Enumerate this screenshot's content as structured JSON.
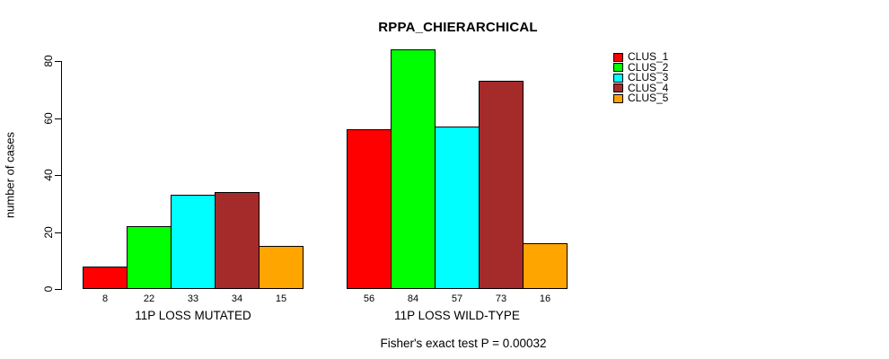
{
  "page": {
    "background": "#FFFFFF"
  },
  "chart_data": {
    "type": "bar",
    "title": "RPPA_CHIERARCHICAL",
    "xlabel": "",
    "ylabel": "number of cases",
    "ylim": [
      0,
      80
    ],
    "yticks": [
      0,
      20,
      40,
      60,
      80
    ],
    "grid": false,
    "legend_position": "right-outside",
    "categories": [
      "11P LOSS MUTATED",
      "11P LOSS WILD-TYPE"
    ],
    "series": [
      {
        "name": "CLUS_1",
        "color": "#FF0000",
        "values": [
          8,
          56
        ]
      },
      {
        "name": "CLUS_2",
        "color": "#00FF00",
        "values": [
          22,
          84
        ]
      },
      {
        "name": "CLUS_3",
        "color": "#00FFFF",
        "values": [
          33,
          57
        ]
      },
      {
        "name": "CLUS_4",
        "color": "#A52A2A",
        "values": [
          34,
          73
        ]
      },
      {
        "name": "CLUS_5",
        "color": "#FFA500",
        "values": [
          15,
          16
        ]
      }
    ],
    "bar_value_labels_shown": true,
    "annotation": "Fisher's exact test P = 0.00032"
  }
}
